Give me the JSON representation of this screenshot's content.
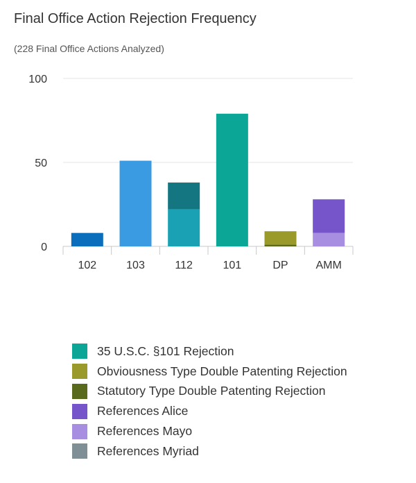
{
  "title": "Final Office Action Rejection Frequency",
  "subtitle": "(228 Final Office Actions Analyzed)",
  "chart_data": {
    "type": "bar",
    "stacked": true,
    "categories": [
      "102",
      "103",
      "112",
      "101",
      "DP",
      "AMM"
    ],
    "ylim": [
      0,
      100
    ],
    "yticks": [
      {
        "value": 0,
        "label": "0"
      },
      {
        "value": 50,
        "label": "50"
      },
      {
        "value": 100,
        "label": "100"
      }
    ],
    "grid": true,
    "legend_position": "bottom",
    "stacks": [
      [
        {
          "value": 8,
          "color": "#0a6ebd"
        }
      ],
      [
        {
          "value": 51,
          "color": "#3a9be2"
        }
      ],
      [
        {
          "value": 22,
          "color": "#1aa2b4"
        },
        {
          "value": 16,
          "color": "#137680"
        }
      ],
      [
        {
          "value": 79,
          "color": "#0ca697"
        }
      ],
      [
        {
          "value": 1,
          "color": "#5a6a1c"
        },
        {
          "value": 8,
          "color": "#9a9a2a"
        }
      ],
      [
        {
          "value": 8,
          "color": "#a88ee0"
        },
        {
          "value": 20,
          "color": "#7654c9"
        }
      ]
    ],
    "legend": [
      {
        "label": "35 U.S.C. §101 Rejection",
        "color": "#0ca697"
      },
      {
        "label": "Obviousness Type Double Patenting Rejection",
        "color": "#9a9a2a"
      },
      {
        "label": "Statutory Type Double Patenting Rejection",
        "color": "#5a6a1c"
      },
      {
        "label": "References Alice",
        "color": "#7654c9"
      },
      {
        "label": "References Mayo",
        "color": "#a88ee0"
      },
      {
        "label": "References Myriad",
        "color": "#808e96"
      }
    ]
  }
}
